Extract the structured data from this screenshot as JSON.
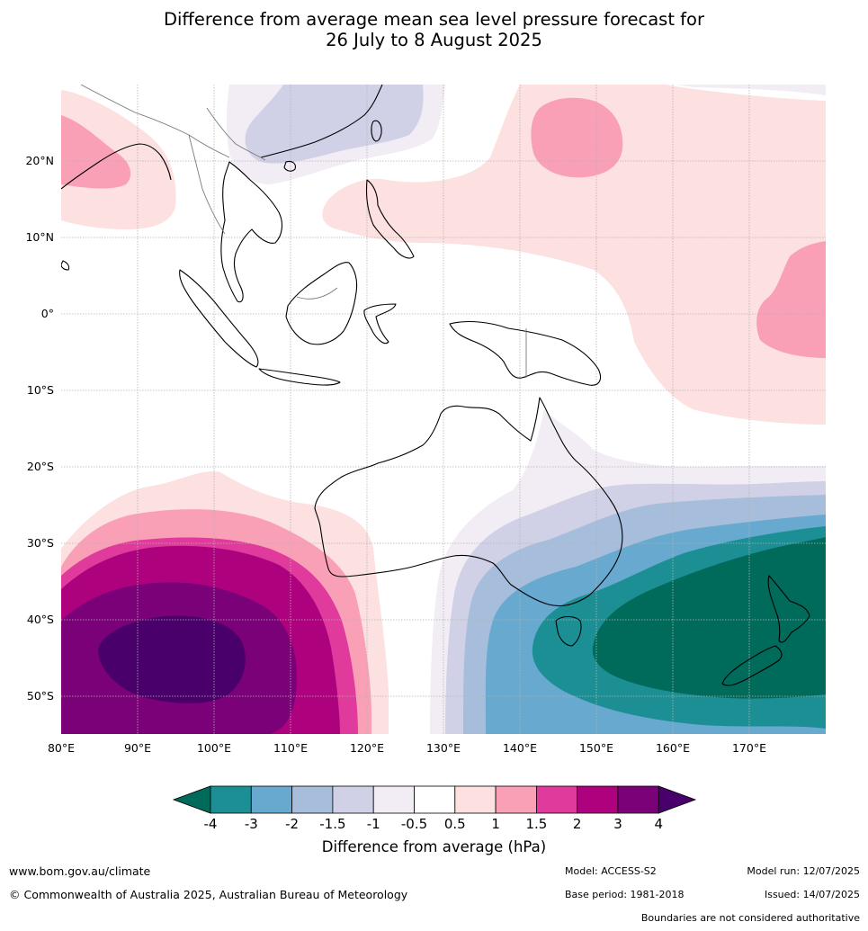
{
  "title_line1": "Difference from average mean sea level pressure forecast for",
  "title_line2": "26 July to 8 August 2025",
  "map": {
    "lon_range": [
      80,
      180
    ],
    "lat_range": [
      -55,
      30
    ],
    "lon_ticks": [
      "80°E",
      "90°E",
      "100°E",
      "110°E",
      "120°E",
      "130°E",
      "140°E",
      "150°E",
      "160°E",
      "170°E"
    ],
    "lat_ticks": [
      "20°N",
      "10°N",
      "0°",
      "10°S",
      "20°S",
      "30°S",
      "40°S",
      "50°S"
    ],
    "grid": true
  },
  "colorbar": {
    "title": "Difference from average (hPa)",
    "tick_labels": [
      "-4",
      "-3",
      "-2",
      "-1.5",
      "-1",
      "-0.5",
      "0.5",
      "1",
      "1.5",
      "2",
      "3",
      "4"
    ],
    "colors": {
      "below_-4": "#006b5a",
      "-4_-3": "#1c8f95",
      "-3_-2": "#67a9cf",
      "-2_-1.5": "#a6bddb",
      "-1.5_-1": "#d0d1e6",
      "-1_-0.5": "#f2ecf4",
      "-0.5_0.5": "#ffffff",
      "0.5_1": "#fde0e0",
      "1_1.5": "#f99fb6",
      "1.5_2": "#df3a9c",
      "2_3": "#ae017e",
      "3_4": "#7a0177",
      "above_4": "#49006a"
    }
  },
  "footer": {
    "website": "www.bom.gov.au/climate",
    "copyright": "© Commonwealth of Australia 2025, Australian Bureau of Meteorology",
    "model": "Model: ACCESS-S2",
    "base_period": "Base period: 1981-2018",
    "model_run": "Model run: 12/07/2025",
    "issued": "Issued: 14/07/2025",
    "disclaimer": "Boundaries are not considered authoritative"
  }
}
